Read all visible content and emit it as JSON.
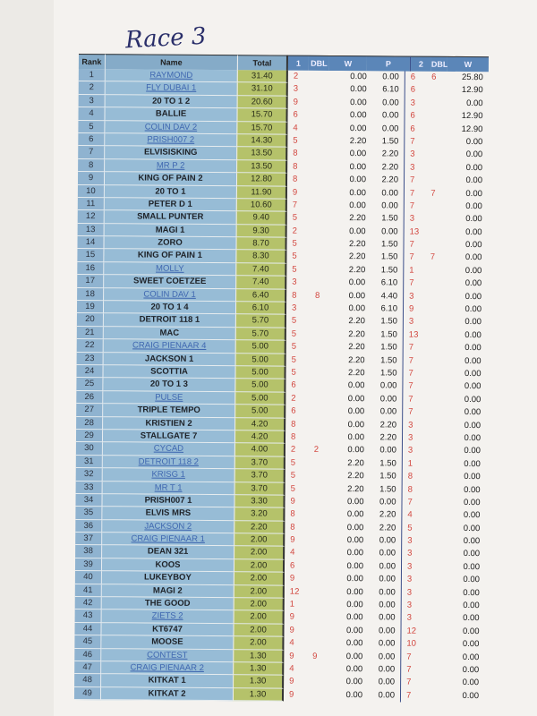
{
  "heading": "Race 3",
  "columns": {
    "rank": "Rank",
    "name": "Name",
    "total": "Total",
    "pick1": "1",
    "dbl1": "DBL",
    "w1": "W",
    "p1": "P",
    "pick2": "2",
    "dbl2": "DBL",
    "w2": "W"
  },
  "colors": {
    "rank_bg": "#8fb3d0",
    "name_bg": "#97bcd6",
    "total_bg": "#b5c26a",
    "header_bg": "#5b86b8",
    "pick_text": "#d2463e",
    "link_text": "#3f67b0"
  },
  "rows": [
    [
      "1",
      "RAYMOND",
      "31.40",
      "2",
      "",
      "0.00",
      "0.00",
      "6",
      "6",
      "25.80",
      true
    ],
    [
      "2",
      "FLY DUBAI 1",
      "31.10",
      "3",
      "",
      "0.00",
      "6.10",
      "6",
      "",
      "12.90",
      true
    ],
    [
      "3",
      "20 TO 1  2",
      "20.60",
      "9",
      "",
      "0.00",
      "0.00",
      "3",
      "",
      "0.00",
      false
    ],
    [
      "4",
      "BALLIE",
      "15.70",
      "6",
      "",
      "0.00",
      "0.00",
      "6",
      "",
      "12.90",
      false
    ],
    [
      "5",
      "COLIN DAV 2",
      "15.70",
      "4",
      "",
      "0.00",
      "0.00",
      "6",
      "",
      "12.90",
      true
    ],
    [
      "6",
      "PRISH007 2",
      "14.30",
      "5",
      "",
      "2.20",
      "1.50",
      "7",
      "",
      "0.00",
      true
    ],
    [
      "7",
      "ELVISISKING",
      "13.50",
      "8",
      "",
      "0.00",
      "2.20",
      "3",
      "",
      "0.00",
      false
    ],
    [
      "8",
      "MR P 2",
      "13.50",
      "8",
      "",
      "0.00",
      "2.20",
      "3",
      "",
      "0.00",
      true
    ],
    [
      "9",
      "KING OF PAIN 2",
      "12.80",
      "8",
      "",
      "0.00",
      "2.20",
      "7",
      "",
      "0.00",
      false
    ],
    [
      "10",
      "20 TO 1",
      "11.90",
      "9",
      "",
      "0.00",
      "0.00",
      "7",
      "7",
      "0.00",
      false
    ],
    [
      "11",
      "PETER D 1",
      "10.60",
      "7",
      "",
      "0.00",
      "0.00",
      "7",
      "",
      "0.00",
      false
    ],
    [
      "12",
      "SMALL PUNTER",
      "9.40",
      "5",
      "",
      "2.20",
      "1.50",
      "3",
      "",
      "0.00",
      false
    ],
    [
      "13",
      "MAGI 1",
      "9.30",
      "2",
      "",
      "0.00",
      "0.00",
      "13",
      "",
      "0.00",
      false
    ],
    [
      "14",
      "ZORO",
      "8.70",
      "5",
      "",
      "2.20",
      "1.50",
      "7",
      "",
      "0.00",
      false
    ],
    [
      "15",
      "KING OF PAIN 1",
      "8.30",
      "5",
      "",
      "2.20",
      "1.50",
      "7",
      "7",
      "0.00",
      false
    ],
    [
      "16",
      "MOLLY",
      "7.40",
      "5",
      "",
      "2.20",
      "1.50",
      "1",
      "",
      "0.00",
      true
    ],
    [
      "17",
      "SWEET COETZEE",
      "7.40",
      "3",
      "",
      "0.00",
      "6.10",
      "7",
      "",
      "0.00",
      false
    ],
    [
      "18",
      "COLIN DAV 1",
      "6.40",
      "8",
      "8",
      "0.00",
      "4.40",
      "3",
      "",
      "0.00",
      true
    ],
    [
      "19",
      "20 TO 1  4",
      "6.10",
      "3",
      "",
      "0.00",
      "6.10",
      "9",
      "",
      "0.00",
      false
    ],
    [
      "20",
      "DETROIT 118 1",
      "5.70",
      "5",
      "",
      "2.20",
      "1.50",
      "3",
      "",
      "0.00",
      false
    ],
    [
      "21",
      "MAC",
      "5.70",
      "5",
      "",
      "2.20",
      "1.50",
      "13",
      "",
      "0.00",
      false
    ],
    [
      "22",
      "CRAIG PIENAAR 4",
      "5.00",
      "5",
      "",
      "2.20",
      "1.50",
      "7",
      "",
      "0.00",
      true
    ],
    [
      "23",
      "JACKSON 1",
      "5.00",
      "5",
      "",
      "2.20",
      "1.50",
      "7",
      "",
      "0.00",
      false
    ],
    [
      "24",
      "SCOTTIA",
      "5.00",
      "5",
      "",
      "2.20",
      "1.50",
      "7",
      "",
      "0.00",
      false
    ],
    [
      "25",
      "20 TO 1 3",
      "5.00",
      "6",
      "",
      "0.00",
      "0.00",
      "7",
      "",
      "0.00",
      false
    ],
    [
      "26",
      "PULSE",
      "5.00",
      "2",
      "",
      "0.00",
      "0.00",
      "7",
      "",
      "0.00",
      true
    ],
    [
      "27",
      "TRIPLE TEMPO",
      "5.00",
      "6",
      "",
      "0.00",
      "0.00",
      "7",
      "",
      "0.00",
      false
    ],
    [
      "28",
      "KRISTIEN 2",
      "4.20",
      "8",
      "",
      "0.00",
      "2.20",
      "3",
      "",
      "0.00",
      false
    ],
    [
      "29",
      "STALLGATE 7",
      "4.20",
      "8",
      "",
      "0.00",
      "2.20",
      "3",
      "",
      "0.00",
      false
    ],
    [
      "30",
      "CYCAD",
      "4.00",
      "2",
      "2",
      "0.00",
      "0.00",
      "3",
      "",
      "0.00",
      true
    ],
    [
      "31",
      "DETROIT 118 2",
      "3.70",
      "5",
      "",
      "2.20",
      "1.50",
      "1",
      "",
      "0.00",
      true
    ],
    [
      "32",
      "KRISG  1",
      "3.70",
      "5",
      "",
      "2.20",
      "1.50",
      "8",
      "",
      "0.00",
      true
    ],
    [
      "33",
      "MR T  1",
      "3.70",
      "5",
      "",
      "2.20",
      "1.50",
      "8",
      "",
      "0.00",
      true
    ],
    [
      "34",
      "PRISH007  1",
      "3.30",
      "9",
      "",
      "0.00",
      "0.00",
      "7",
      "",
      "0.00",
      false
    ],
    [
      "35",
      "ELVIS MRS",
      "3.20",
      "8",
      "",
      "0.00",
      "2.20",
      "4",
      "",
      "0.00",
      false
    ],
    [
      "36",
      "JACKSON 2",
      "2.20",
      "8",
      "",
      "0.00",
      "2.20",
      "5",
      "",
      "0.00",
      true
    ],
    [
      "37",
      "CRAIG PIENAAR 1",
      "2.00",
      "9",
      "",
      "0.00",
      "0.00",
      "3",
      "",
      "0.00",
      true
    ],
    [
      "38",
      "DEAN 321",
      "2.00",
      "4",
      "",
      "0.00",
      "0.00",
      "3",
      "",
      "0.00",
      false
    ],
    [
      "39",
      "KOOS",
      "2.00",
      "6",
      "",
      "0.00",
      "0.00",
      "3",
      "",
      "0.00",
      false
    ],
    [
      "40",
      "LUKEYBOY",
      "2.00",
      "9",
      "",
      "0.00",
      "0.00",
      "3",
      "",
      "0.00",
      false
    ],
    [
      "41",
      "MAGI 2",
      "2.00",
      "12",
      "",
      "0.00",
      "0.00",
      "3",
      "",
      "0.00",
      false
    ],
    [
      "42",
      "THE GOOD",
      "2.00",
      "1",
      "",
      "0.00",
      "0.00",
      "3",
      "",
      "0.00",
      false
    ],
    [
      "43",
      "ZIETS 2",
      "2.00",
      "9",
      "",
      "0.00",
      "0.00",
      "3",
      "",
      "0.00",
      true
    ],
    [
      "44",
      "KT6747",
      "2.00",
      "9",
      "",
      "0.00",
      "0.00",
      "12",
      "",
      "0.00",
      false
    ],
    [
      "45",
      "MOOSE",
      "2.00",
      "4",
      "",
      "0.00",
      "0.00",
      "10",
      "",
      "0.00",
      false
    ],
    [
      "46",
      "CONTEST",
      "1.30",
      "9",
      "9",
      "0.00",
      "0.00",
      "7",
      "",
      "0.00",
      true
    ],
    [
      "47",
      "CRAIG PIENAAR 2",
      "1.30",
      "4",
      "",
      "0.00",
      "0.00",
      "7",
      "",
      "0.00",
      true
    ],
    [
      "48",
      "KITKAT 1",
      "1.30",
      "9",
      "",
      "0.00",
      "0.00",
      "7",
      "",
      "0.00",
      false
    ],
    [
      "49",
      "KITKAT 2",
      "1.30",
      "9",
      "",
      "0.00",
      "0.00",
      "7",
      "",
      "0.00",
      false
    ]
  ]
}
